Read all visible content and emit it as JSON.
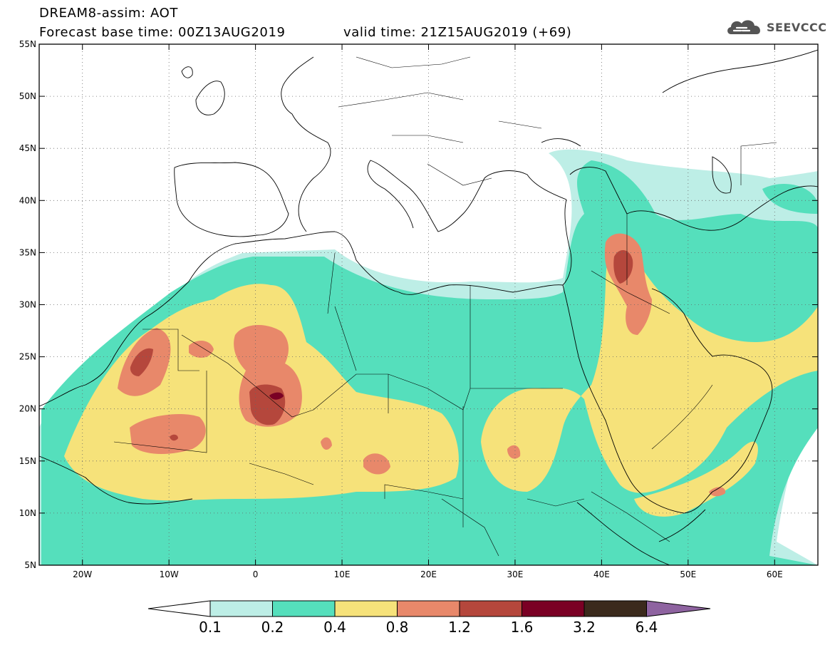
{
  "header": {
    "title": "DREAM8-assim: AOT",
    "base_time": "Forecast base time: 00Z13AUG2019",
    "valid_time": "valid time: 21Z15AUG2019 (+69)"
  },
  "logo": {
    "text": "SEEVCCC",
    "icon": "cloud-logo-icon"
  },
  "map": {
    "variable": "Aerosol optical thickness",
    "lon_range": [
      -25,
      65
    ],
    "lat_range": [
      5,
      55
    ],
    "lat_ticks": [
      "55N",
      "50N",
      "45N",
      "40N",
      "35N",
      "30N",
      "25N",
      "20N",
      "15N",
      "10N",
      "5N"
    ],
    "lon_ticks": [
      "20W",
      "10W",
      "0",
      "10E",
      "20E",
      "30E",
      "40E",
      "50E",
      "60E"
    ],
    "grid": "dotted",
    "land_background": "#ffffff"
  },
  "colorbar": {
    "labels": [
      "0.1",
      "0.2",
      "0.4",
      "0.8",
      "1.2",
      "1.6",
      "3.2",
      "6.4"
    ],
    "colors": [
      "#ffffff",
      "#bdeee6",
      "#55dfbc",
      "#f6e27a",
      "#e8886a",
      "#b5473c",
      "#7a0024",
      "#3b2a1c",
      "#8e63a0"
    ]
  }
}
